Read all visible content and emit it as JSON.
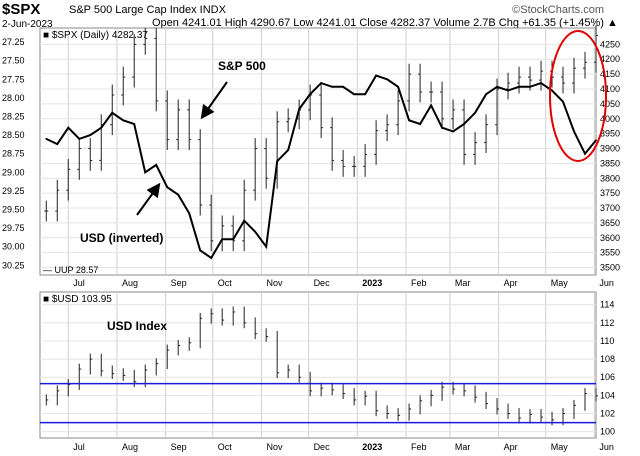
{
  "header": {
    "symbol": "$SPX",
    "name": "S&P 500 Large Cap Index INDX",
    "date": "2-Jun-2023",
    "quote": "Open 4241.01  High 4290.67  Low 4241.01  Close 4282.37  Volume 2.7B  Chg +61.35 (+1.45%) ▲",
    "brand": "©StockCharts.com"
  },
  "chart_data": [
    {
      "type": "line",
      "panel": "top",
      "legend_main": "■ $SPX (Daily) 4282.37",
      "legend_overlay": "— UUP 28.57",
      "annotations": [
        {
          "text": "S&P 500"
        },
        {
          "text": "USD (inverted)"
        }
      ],
      "x_ticks": [
        "Jul",
        "Aug",
        "Sep",
        "Oct",
        "Nov",
        "Dec",
        "2023",
        "Feb",
        "Mar",
        "Apr",
        "May",
        "Jun"
      ],
      "x_range": [
        "2022-06-13",
        "2023-06-02"
      ],
      "left_axis_inverted_ticks": [
        "27.25",
        "27.50",
        "27.75",
        "28.00",
        "28.25",
        "28.50",
        "28.75",
        "29.00",
        "29.25",
        "29.50",
        "29.75",
        "30.00",
        "30.25"
      ],
      "right_axis_ticks": [
        "4250",
        "4200",
        "4150",
        "4100",
        "4050",
        "4000",
        "3950",
        "3900",
        "3850",
        "3800",
        "3750",
        "3700",
        "3650",
        "3600",
        "3550",
        "3500"
      ],
      "right_ylim": [
        3475,
        4305
      ],
      "left_ylim": [
        27.06,
        30.38
      ],
      "series": [
        {
          "name": "$SPX",
          "style": "ohlc-bars",
          "x": [
            "2022-06-17",
            "2022-06-24",
            "2022-07-01",
            "2022-07-08",
            "2022-07-15",
            "2022-07-22",
            "2022-07-29",
            "2022-08-05",
            "2022-08-12",
            "2022-08-19",
            "2022-08-26",
            "2022-09-02",
            "2022-09-09",
            "2022-09-16",
            "2022-09-23",
            "2022-09-30",
            "2022-10-07",
            "2022-10-14",
            "2022-10-21",
            "2022-10-28",
            "2022-11-04",
            "2022-11-11",
            "2022-11-18",
            "2022-11-25",
            "2022-12-02",
            "2022-12-09",
            "2022-12-16",
            "2022-12-23",
            "2022-12-30",
            "2023-01-06",
            "2023-01-13",
            "2023-01-20",
            "2023-01-27",
            "2023-02-03",
            "2023-02-10",
            "2023-02-17",
            "2023-02-24",
            "2023-03-03",
            "2023-03-10",
            "2023-03-17",
            "2023-03-24",
            "2023-03-31",
            "2023-04-07",
            "2023-04-14",
            "2023-04-21",
            "2023-04-28",
            "2023-05-05",
            "2023-05-12",
            "2023-05-19",
            "2023-05-26",
            "2023-06-02"
          ],
          "values": [
            3690,
            3760,
            3830,
            3900,
            3860,
            3980,
            4080,
            4140,
            4250,
            4270,
            4060,
            3930,
            4030,
            3930,
            3710,
            3590,
            3640,
            3590,
            3760,
            3900,
            3800,
            3990,
            4000,
            4030,
            4080,
            3970,
            3860,
            3840,
            3840,
            3880,
            3960,
            3980,
            4060,
            4150,
            4090,
            4090,
            4000,
            4030,
            3880,
            3920,
            3980,
            4100,
            4120,
            4140,
            4130,
            4160,
            4140,
            4120,
            4170,
            4190,
            4280
          ]
        },
        {
          "name": "UUP",
          "style": "line",
          "axis": "left-inverted",
          "x": [
            "2022-06-17",
            "2022-06-24",
            "2022-07-01",
            "2022-07-08",
            "2022-07-15",
            "2022-07-22",
            "2022-07-29",
            "2022-08-05",
            "2022-08-12",
            "2022-08-19",
            "2022-08-26",
            "2022-09-02",
            "2022-09-09",
            "2022-09-16",
            "2022-09-23",
            "2022-09-30",
            "2022-10-07",
            "2022-10-14",
            "2022-10-21",
            "2022-10-28",
            "2022-11-04",
            "2022-11-11",
            "2022-11-18",
            "2022-11-25",
            "2022-12-02",
            "2022-12-09",
            "2022-12-16",
            "2022-12-23",
            "2022-12-30",
            "2023-01-06",
            "2023-01-13",
            "2023-01-20",
            "2023-01-27",
            "2023-02-03",
            "2023-02-10",
            "2023-02-17",
            "2023-02-24",
            "2023-03-03",
            "2023-03-10",
            "2023-03-17",
            "2023-03-24",
            "2023-03-31",
            "2023-04-07",
            "2023-04-14",
            "2023-04-21",
            "2023-04-28",
            "2023-05-05",
            "2023-05-12",
            "2023-05-19",
            "2023-05-26",
            "2023-06-02"
          ],
          "values": [
            28.55,
            28.62,
            28.4,
            28.55,
            28.5,
            28.4,
            28.2,
            28.3,
            28.35,
            29.0,
            28.9,
            29.2,
            29.3,
            29.55,
            30.05,
            30.15,
            29.9,
            29.9,
            29.65,
            29.8,
            30.0,
            28.85,
            28.7,
            28.15,
            27.95,
            27.8,
            27.85,
            27.85,
            27.95,
            27.95,
            27.7,
            27.75,
            27.85,
            28.3,
            28.35,
            28.1,
            28.4,
            28.45,
            28.35,
            28.2,
            27.95,
            27.85,
            27.9,
            27.85,
            27.85,
            27.8,
            27.9,
            28.05,
            28.45,
            28.75,
            28.57
          ]
        }
      ]
    },
    {
      "type": "line",
      "panel": "bottom",
      "legend": "■ $USD 103.95",
      "annotations": [
        {
          "text": "USD Index"
        }
      ],
      "x_ticks": [
        "Jul",
        "Aug",
        "Sep",
        "Oct",
        "Nov",
        "Dec",
        "2023",
        "Feb",
        "Mar",
        "Apr",
        "May",
        "Jun"
      ],
      "y_ticks": [
        "114",
        "112",
        "110",
        "108",
        "106",
        "104",
        "102",
        "100"
      ],
      "ylim": [
        99.3,
        115.4
      ],
      "horizontal_lines": [
        105.3,
        101.0
      ],
      "series": [
        {
          "name": "$USD",
          "x": [
            "2022-06-17",
            "2022-06-24",
            "2022-07-01",
            "2022-07-08",
            "2022-07-15",
            "2022-07-22",
            "2022-07-29",
            "2022-08-05",
            "2022-08-12",
            "2022-08-19",
            "2022-08-26",
            "2022-09-02",
            "2022-09-09",
            "2022-09-16",
            "2022-09-23",
            "2022-09-30",
            "2022-10-07",
            "2022-10-14",
            "2022-10-21",
            "2022-10-28",
            "2022-11-04",
            "2022-11-11",
            "2022-11-18",
            "2022-11-25",
            "2022-12-02",
            "2022-12-09",
            "2022-12-16",
            "2022-12-23",
            "2022-12-30",
            "2023-01-06",
            "2023-01-13",
            "2023-01-20",
            "2023-01-27",
            "2023-02-03",
            "2023-02-10",
            "2023-02-17",
            "2023-02-24",
            "2023-03-03",
            "2023-03-10",
            "2023-03-17",
            "2023-03-24",
            "2023-03-31",
            "2023-04-07",
            "2023-04-14",
            "2023-04-21",
            "2023-04-28",
            "2023-05-05",
            "2023-05-12",
            "2023-05-19",
            "2023-05-26",
            "2023-06-02"
          ],
          "values": [
            103.5,
            104.5,
            105.2,
            106.9,
            108.0,
            106.7,
            106.4,
            106.2,
            105.5,
            106.8,
            107.5,
            109.0,
            109.5,
            109.8,
            112.5,
            113.0,
            112.3,
            113.2,
            112.0,
            110.8,
            110.5,
            106.5,
            106.8,
            106.0,
            104.5,
            104.8,
            104.6,
            104.2,
            103.5,
            103.9,
            102.3,
            102.0,
            101.8,
            102.5,
            103.4,
            104.0,
            104.9,
            104.7,
            104.5,
            103.8,
            103.1,
            102.5,
            102.0,
            101.5,
            101.9,
            101.6,
            101.3,
            102.0,
            102.9,
            104.2,
            103.95
          ]
        }
      ]
    }
  ],
  "highlight": {
    "shape": "ellipse",
    "color": "#e00000"
  }
}
